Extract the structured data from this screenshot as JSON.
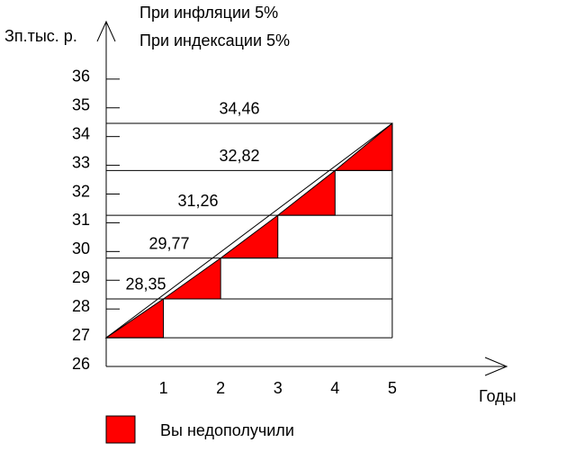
{
  "chart_data": {
    "type": "step",
    "annotations": [
      "При инфляции 5%",
      "При индексации 5%"
    ],
    "y_label": "Зп.тыс. р.",
    "x_label": "Годы",
    "xlim": [
      0,
      7
    ],
    "xticks": [
      1,
      2,
      3,
      4,
      5
    ],
    "ylim": [
      26,
      38
    ],
    "yticks": [
      26,
      27,
      28,
      29,
      30,
      31,
      32,
      33,
      34,
      35,
      36
    ],
    "series": [
      {
        "name": "Вы недополучили",
        "color": "#ff0000",
        "x": [
          0,
          1,
          2,
          3,
          4,
          5
        ],
        "values": [
          27,
          28.35,
          29.77,
          31.26,
          32.82,
          34.46
        ],
        "value_labels": [
          null,
          "28,35",
          "29,77",
          "31,26",
          "32,82",
          "34,46"
        ]
      }
    ]
  }
}
